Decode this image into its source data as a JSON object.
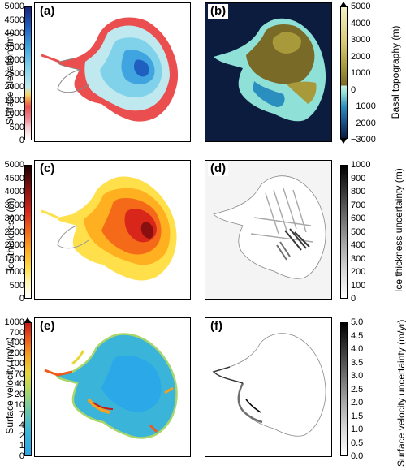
{
  "panels": [
    {
      "id": "a",
      "label": "(a)",
      "ylabel": "Surface elevation (m)",
      "ticks": [
        "5000",
        "4500",
        "4000",
        "3500",
        "3000",
        "2500",
        "2000",
        "1500",
        "1000",
        "500",
        "0"
      ]
    },
    {
      "id": "b",
      "label": "(b)",
      "ylabel": "Basal topography (m)",
      "ticks": [
        "5000",
        "4000",
        "3000",
        "2000",
        "1000",
        "0",
        "−1000",
        "−2000",
        "−3000"
      ]
    },
    {
      "id": "c",
      "label": "(c)",
      "ylabel": "Ice thickness (m)",
      "ticks": [
        "5000",
        "4500",
        "4000",
        "3500",
        "3000",
        "2500",
        "2000",
        "1500",
        "1000",
        "500",
        "0"
      ]
    },
    {
      "id": "d",
      "label": "(d)",
      "ylabel": "Ice thickness uncertainty (m)",
      "ticks": [
        "1000",
        "900",
        "800",
        "700",
        "600",
        "500",
        "400",
        "300",
        "200",
        "100",
        "0"
      ]
    },
    {
      "id": "e",
      "label": "(e)",
      "ylabel": "Surface velocity (m/yr)",
      "ticks": [
        "1000",
        "700",
        "400",
        "200",
        "100",
        "70",
        "40",
        "20",
        "10",
        "7",
        "4",
        "2",
        "1",
        "0"
      ]
    },
    {
      "id": "f",
      "label": "(f)",
      "ylabel": "Surface velocity uncertainty (m/yr)",
      "ticks": [
        "5.0",
        "4.5",
        "4.0",
        "3.5",
        "3.0",
        "2.5",
        "2.0",
        "1.5",
        "1.0",
        "0.5",
        "0.0"
      ]
    }
  ],
  "colors": {
    "elevation": [
      "#ffffff",
      "#f7c9cf",
      "#ef8f9a",
      "#ea4e4e",
      "#f39c4a",
      "#f5d76e",
      "#bfe9ef",
      "#7fd2ea",
      "#3fa4e0",
      "#1f5fbf",
      "#1a237e"
    ],
    "topography": [
      "#0b1c3f",
      "#1a4f8a",
      "#2a8fbf",
      "#8fe0d6",
      "#c8f0e8",
      "#7a6a28",
      "#a89a3a",
      "#d8c870",
      "#f4f0c8"
    ],
    "thickness": [
      "#ffffff",
      "#fff6b0",
      "#ffe04a",
      "#ffb020",
      "#f46a18",
      "#d8261a",
      "#8a1010",
      "#1a0000"
    ],
    "uncertainty": [
      "#ffffff",
      "#d8d8d8",
      "#a8a8a8",
      "#707070",
      "#383838",
      "#000000"
    ],
    "velocity": [
      "#2aa8e8",
      "#3ab4d8",
      "#6cc7a8",
      "#a8d66c",
      "#e6d83a",
      "#f4a020",
      "#ef5a1a",
      "#c81818"
    ]
  }
}
